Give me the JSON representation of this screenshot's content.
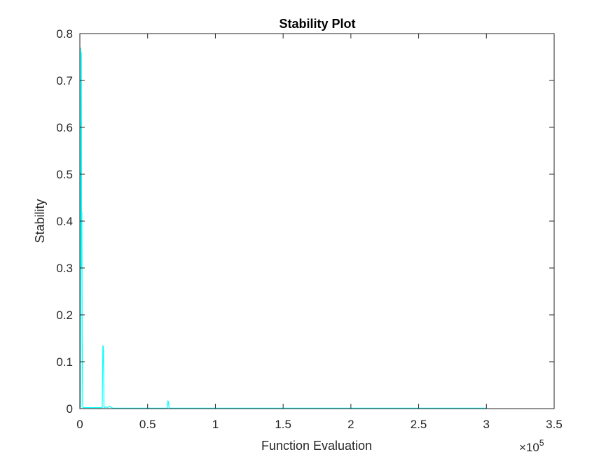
{
  "chart_data": {
    "type": "line",
    "title": "Stability Plot",
    "xlabel": "Function Evaluation",
    "ylabel": "Stability",
    "xlim": [
      0,
      350000
    ],
    "ylim": [
      0,
      0.8
    ],
    "grid": false,
    "legend": "none",
    "x_exponent_label": "×10",
    "x_exponent_power": "5",
    "x_ticks": [
      0,
      50000,
      100000,
      150000,
      200000,
      250000,
      300000,
      350000
    ],
    "x_tick_labels": [
      "0",
      "0.5",
      "1",
      "1.5",
      "2",
      "2.5",
      "3",
      "3.5"
    ],
    "y_ticks": [
      0,
      0.1,
      0.2,
      0.3,
      0.4,
      0.5,
      0.6,
      0.7,
      0.8
    ],
    "y_tick_labels": [
      "0",
      "0.1",
      "0.2",
      "0.3",
      "0.4",
      "0.5",
      "0.6",
      "0.7",
      "0.8"
    ],
    "series": [
      {
        "color": "#00ffff",
        "x": [
          0,
          300,
          500,
          700,
          900,
          1100,
          1300,
          1500,
          1700,
          1900,
          2100,
          2400,
          16500,
          17000,
          17400,
          17800,
          18200,
          19500,
          20500,
          22000,
          23500,
          24500,
          64500,
          65000,
          65400,
          65800,
          66200,
          300000
        ],
        "y": [
          0,
          0.075,
          0.002,
          0.77,
          0.5,
          0.76,
          0.3,
          0.42,
          0.15,
          0.08,
          0.004,
          0.002,
          0.002,
          0.135,
          0.13,
          0.003,
          0.002,
          0.004,
          0.002,
          0.005,
          0.002,
          0.001,
          0.001,
          0.016,
          0.014,
          0.002,
          0.001,
          0.001
        ]
      }
    ]
  }
}
